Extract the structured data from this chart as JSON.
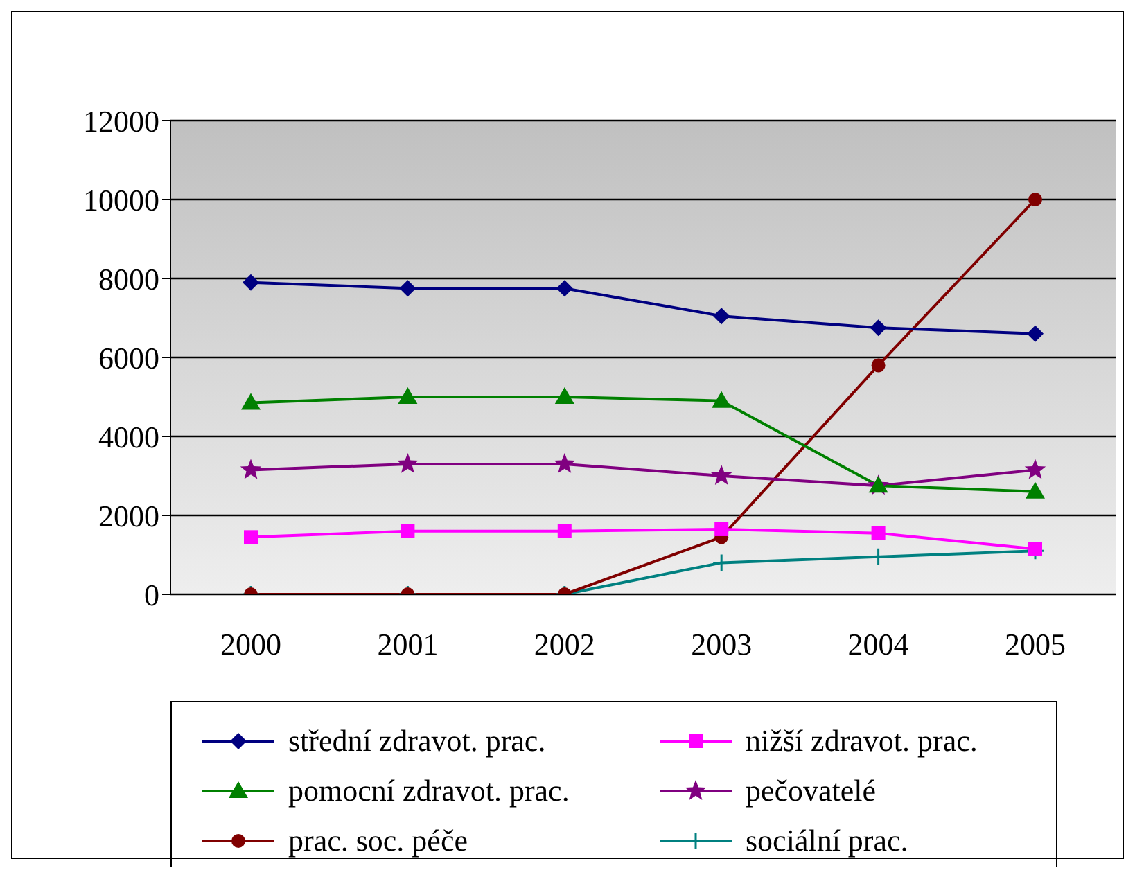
{
  "chart_data": {
    "type": "line",
    "categories": [
      "2000",
      "2001",
      "2002",
      "2003",
      "2004",
      "2005"
    ],
    "series": [
      {
        "name": "střední zdravot. prac.",
        "color": "#000080",
        "marker": "diamond",
        "values": [
          7900,
          7750,
          7750,
          7050,
          6750,
          6600
        ]
      },
      {
        "name": "nižší zdravot. prac.",
        "color": "#ff00ff",
        "marker": "square",
        "values": [
          1450,
          1600,
          1600,
          1650,
          1550,
          1150
        ]
      },
      {
        "name": "pomocní zdravot. prac.",
        "color": "#008000",
        "marker": "triangle",
        "values": [
          4850,
          5000,
          5000,
          4900,
          2750,
          2600
        ]
      },
      {
        "name": "pečovatelé",
        "color": "#800080",
        "marker": "star",
        "values": [
          3150,
          3300,
          3300,
          3000,
          2750,
          3150
        ]
      },
      {
        "name": "prac. soc. péče",
        "color": "#800000",
        "marker": "circle",
        "values": [
          0,
          0,
          0,
          1450,
          5800,
          10000
        ]
      },
      {
        "name": "sociální prac.",
        "color": "#008080",
        "marker": "cross",
        "values": [
          0,
          0,
          0,
          800,
          950,
          1100
        ]
      }
    ],
    "ylim": [
      0,
      12000
    ],
    "yticks": [
      0,
      2000,
      4000,
      6000,
      8000,
      10000,
      12000
    ],
    "grid": "y",
    "legend": "bottom"
  }
}
